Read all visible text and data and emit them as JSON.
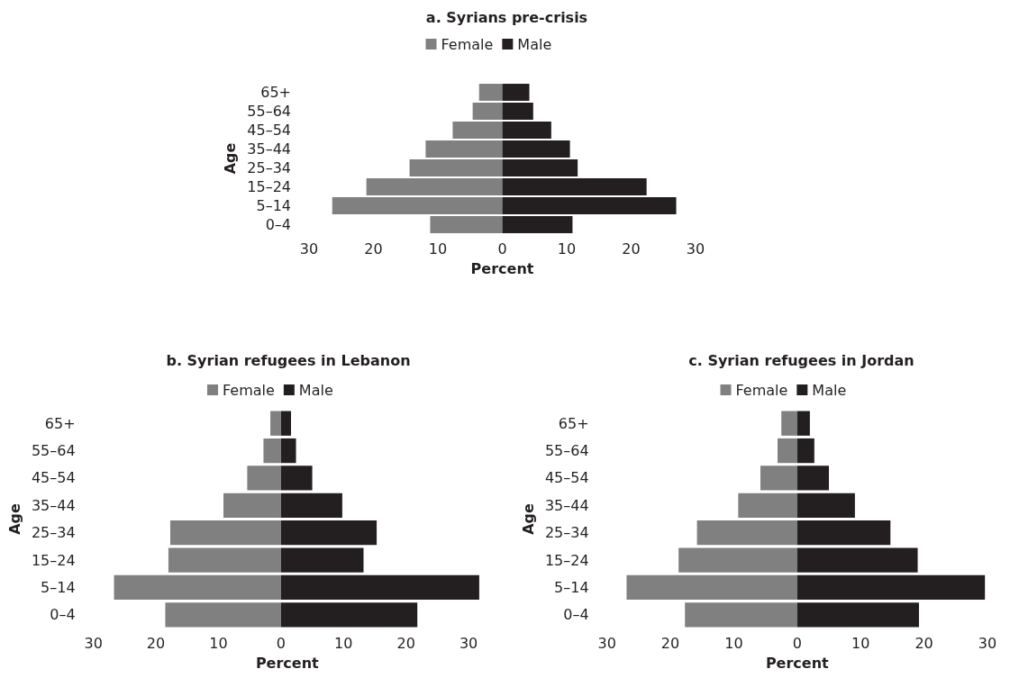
{
  "chart_data": [
    {
      "type": "bar",
      "orientation": "horizontal",
      "stacked": true,
      "title": "a. Syrians pre-crisis",
      "xlabel": "Percent",
      "ylabel": "Age",
      "legend": "top",
      "categories": [
        "65+",
        "55–64",
        "45–54",
        "35–44",
        "25–34",
        "15–24",
        "5–14",
        "0–4"
      ],
      "series": [
        {
          "name": "Female",
          "color": "#808080",
          "values": [
            -3.6,
            -4.6,
            -7.7,
            -11.9,
            -14.4,
            -21.1,
            -26.4,
            -11.2
          ]
        },
        {
          "name": "Male",
          "color": "#231f20",
          "values": [
            4.2,
            4.8,
            7.6,
            10.5,
            11.7,
            22.4,
            27.0,
            10.9
          ]
        }
      ],
      "xlim": [
        -30,
        30
      ],
      "xticks": [
        {
          "value": -30,
          "label": "30"
        },
        {
          "value": -20,
          "label": "20"
        },
        {
          "value": -10,
          "label": "10"
        },
        0,
        10,
        20,
        30
      ],
      "grid": false
    },
    {
      "type": "bar",
      "orientation": "horizontal",
      "stacked": true,
      "title": "b. Syrian refugees in Lebanon",
      "xlabel": "Percent",
      "ylabel": "Age",
      "legend": "top",
      "categories": [
        "65+",
        "55–64",
        "45–54",
        "35–44",
        "25–34",
        "15–24",
        "5–14",
        "0–4"
      ],
      "series": [
        {
          "name": "Female",
          "color": "#808080",
          "values": [
            -1.7,
            -2.8,
            -5.4,
            -9.2,
            -17.7,
            -18.0,
            -26.7,
            -18.5
          ]
        },
        {
          "name": "Male",
          "color": "#231f20",
          "values": [
            1.6,
            2.4,
            5.0,
            9.8,
            15.3,
            13.2,
            31.7,
            21.8
          ]
        }
      ],
      "xlim": [
        -30,
        32
      ],
      "xticks": [
        {
          "value": -30,
          "label": "30"
        },
        {
          "value": -20,
          "label": "20"
        },
        {
          "value": -10,
          "label": "10"
        },
        0,
        10,
        20,
        30
      ],
      "grid": false
    },
    {
      "type": "bar",
      "orientation": "horizontal",
      "stacked": true,
      "title": "c. Syrian refugees in Jordan",
      "xlabel": "Percent",
      "ylabel": "Age",
      "legend": "top",
      "categories": [
        "65+",
        "55–64",
        "45–54",
        "35–44",
        "25–34",
        "15–24",
        "5–14",
        "0–4"
      ],
      "series": [
        {
          "name": "Female",
          "color": "#808080",
          "values": [
            -2.5,
            -3.1,
            -5.8,
            -9.3,
            -15.8,
            -18.7,
            -26.9,
            -17.7
          ]
        },
        {
          "name": "Male",
          "color": "#231f20",
          "values": [
            2.0,
            2.7,
            5.0,
            9.1,
            14.7,
            19.0,
            29.6,
            19.2
          ]
        }
      ],
      "xlim": [
        -30,
        30
      ],
      "xticks": [
        {
          "value": -30,
          "label": "30"
        },
        {
          "value": -20,
          "label": "20"
        },
        {
          "value": -10,
          "label": "10"
        },
        0,
        10,
        20,
        30
      ],
      "grid": false
    }
  ]
}
